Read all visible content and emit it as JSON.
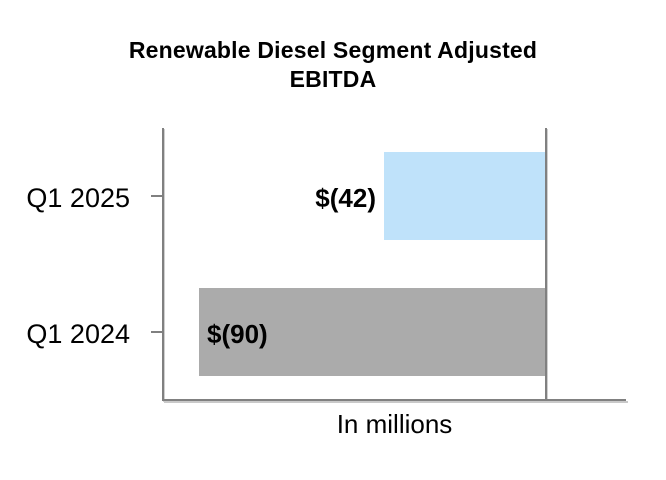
{
  "title": {
    "line1": "Renewable Diesel Segment Adjusted",
    "line2": "EBITDA"
  },
  "chart_data": {
    "type": "bar",
    "orientation": "horizontal",
    "title": "Renewable Diesel Segment Adjusted EBITDA",
    "categories": [
      "Q1 2025",
      "Q1 2024"
    ],
    "values": [
      -42,
      -90
    ],
    "value_labels": [
      "$(42)",
      "$(90)"
    ],
    "series_colors": [
      "#BFE2FA",
      "#ABABAB"
    ],
    "xlabel": "In millions",
    "ylabel": "",
    "xlim": [
      -99,
      0
    ],
    "grid": false,
    "legend": false,
    "zero_line_on_right": true,
    "value_label_color": "#000000",
    "axis_line_color": "#808080"
  }
}
